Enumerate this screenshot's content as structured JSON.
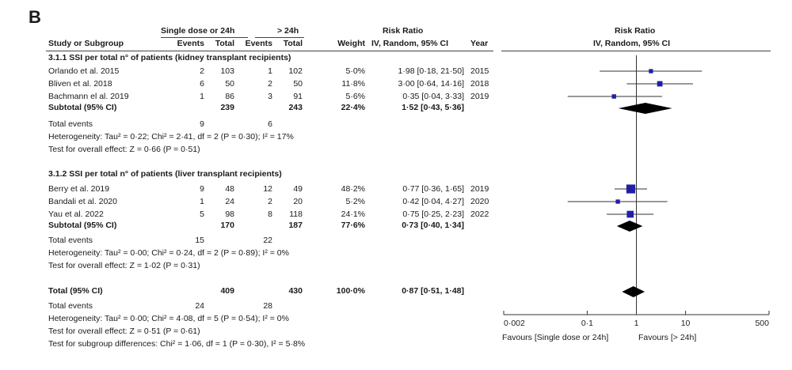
{
  "panel_letter": "B",
  "header": {
    "group1": "Single dose or 24h",
    "group2": "> 24h",
    "rr_top": "Risk Ratio",
    "rr_plot_top": "Risk Ratio",
    "study": "Study or Subgroup",
    "events1": "Events",
    "total1": "Total",
    "events2": "Events",
    "total2": "Total",
    "weight": "Weight",
    "rr_method": "IV, Random, 95% CI",
    "year": "Year",
    "rr_plot_method": "IV, Random, 95% CI"
  },
  "subgroups": [
    {
      "title": "3.1.1 SSI per total n° of patients (kidney transplant recipients)",
      "studies": [
        {
          "name": "Orlando et al. 2015",
          "e1": "2",
          "t1": "103",
          "e2": "1",
          "t2": "102",
          "weight": "5·0%",
          "ci": "1·98 [0·18, 21·50]",
          "year": "2015"
        },
        {
          "name": "Bliven et al. 2018",
          "e1": "6",
          "t1": "50",
          "e2": "2",
          "t2": "50",
          "weight": "11·8%",
          "ci": "3·00 [0·64, 14·16]",
          "year": "2018"
        },
        {
          "name": "Bachmann el al. 2019",
          "e1": "1",
          "t1": "86",
          "e2": "3",
          "t2": "91",
          "weight": "5·6%",
          "ci": "0·35 [0·04, 3·33]",
          "year": "2019"
        }
      ],
      "subtotal": {
        "label": "Subtotal (95% CI)",
        "t1": "239",
        "t2": "243",
        "weight": "22·4%",
        "ci": "1·52 [0·43, 5·36]"
      },
      "events": {
        "label": "Total events",
        "e1": "9",
        "e2": "6"
      },
      "heterogeneity": "Heterogeneity: Tau² = 0·22; Chi² = 2·41, df = 2 (P = 0·30); I² = 17%",
      "overall": "Test for overall effect: Z = 0·66 (P = 0·51)"
    },
    {
      "title": "3.1.2 SSI per total n° of patients (liver transplant recipients)",
      "studies": [
        {
          "name": "Berry et al. 2019",
          "e1": "9",
          "t1": "48",
          "e2": "12",
          "t2": "49",
          "weight": "48·2%",
          "ci": "0·77 [0·36, 1·65]",
          "year": "2019"
        },
        {
          "name": "Bandali et al. 2020",
          "e1": "1",
          "t1": "24",
          "e2": "2",
          "t2": "20",
          "weight": "5·2%",
          "ci": "0·42 [0·04, 4·27]",
          "year": "2020"
        },
        {
          "name": "Yau et al. 2022",
          "e1": "5",
          "t1": "98",
          "e2": "8",
          "t2": "118",
          "weight": "24·1%",
          "ci": "0·75 [0·25, 2·23]",
          "year": "2022"
        }
      ],
      "subtotal": {
        "label": "Subtotal (95% CI)",
        "t1": "170",
        "t2": "187",
        "weight": "77·6%",
        "ci": "0·73 [0·40, 1·34]"
      },
      "events": {
        "label": "Total events",
        "e1": "15",
        "e2": "22"
      },
      "heterogeneity": "Heterogeneity: Tau² = 0·00; Chi² = 0·24, df = 2 (P = 0·89); I² = 0%",
      "overall": "Test for overall effect: Z = 1·02 (P = 0·31)"
    }
  ],
  "total": {
    "label": "Total (95% CI)",
    "t1": "409",
    "t2": "430",
    "weight": "100·0%",
    "ci": "0·87 [0·51, 1·48]",
    "events": {
      "label": "Total events",
      "e1": "24",
      "e2": "28"
    },
    "heterogeneity": "Heterogeneity: Tau² = 0·00; Chi² = 4·08, df = 5 (P = 0·54); I² = 0%",
    "overall": "Test for overall effect: Z = 0·51 (P = 0·61)",
    "subgroup_diff": "Test for subgroup differences: Chi² = 1·06, df = 1 (P = 0·30), I² = 5·8%"
  },
  "axis": {
    "favours_left": "Favours [Single dose or 24h]",
    "favours_right": "Favours [> 24h]"
  },
  "colors": {
    "study_marker": "#1f1fa8",
    "diamond": "#000000",
    "line": "#333333"
  },
  "chart_data": {
    "type": "forest",
    "scale": "log",
    "xlim": [
      0.002,
      500
    ],
    "ticks": [
      {
        "value": 0.002,
        "label": "0·002"
      },
      {
        "value": 0.1,
        "label": "0·1"
      },
      {
        "value": 1,
        "label": "1"
      },
      {
        "value": 10,
        "label": "10"
      },
      {
        "value": 500,
        "label": "500"
      }
    ],
    "studies": [
      {
        "name": "Orlando et al. 2015",
        "rr": 1.98,
        "lo": 0.18,
        "hi": 21.5,
        "weight": 5.0
      },
      {
        "name": "Bliven et al. 2018",
        "rr": 3.0,
        "lo": 0.64,
        "hi": 14.16,
        "weight": 11.8
      },
      {
        "name": "Bachmann el al. 2019",
        "rr": 0.35,
        "lo": 0.04,
        "hi": 3.33,
        "weight": 5.6
      },
      {
        "name": "Berry et al. 2019",
        "rr": 0.77,
        "lo": 0.36,
        "hi": 1.65,
        "weight": 48.2
      },
      {
        "name": "Bandali et al. 2020",
        "rr": 0.42,
        "lo": 0.04,
        "hi": 4.27,
        "weight": 5.2
      },
      {
        "name": "Yau et al. 2022",
        "rr": 0.75,
        "lo": 0.25,
        "hi": 2.23,
        "weight": 24.1
      }
    ],
    "summaries": [
      {
        "name": "Subtotal (95% CI) kidney",
        "rr": 1.52,
        "lo": 0.43,
        "hi": 5.36
      },
      {
        "name": "Subtotal (95% CI) liver",
        "rr": 0.73,
        "lo": 0.4,
        "hi": 1.34
      },
      {
        "name": "Total (95% CI)",
        "rr": 0.87,
        "lo": 0.51,
        "hi": 1.48
      }
    ]
  }
}
